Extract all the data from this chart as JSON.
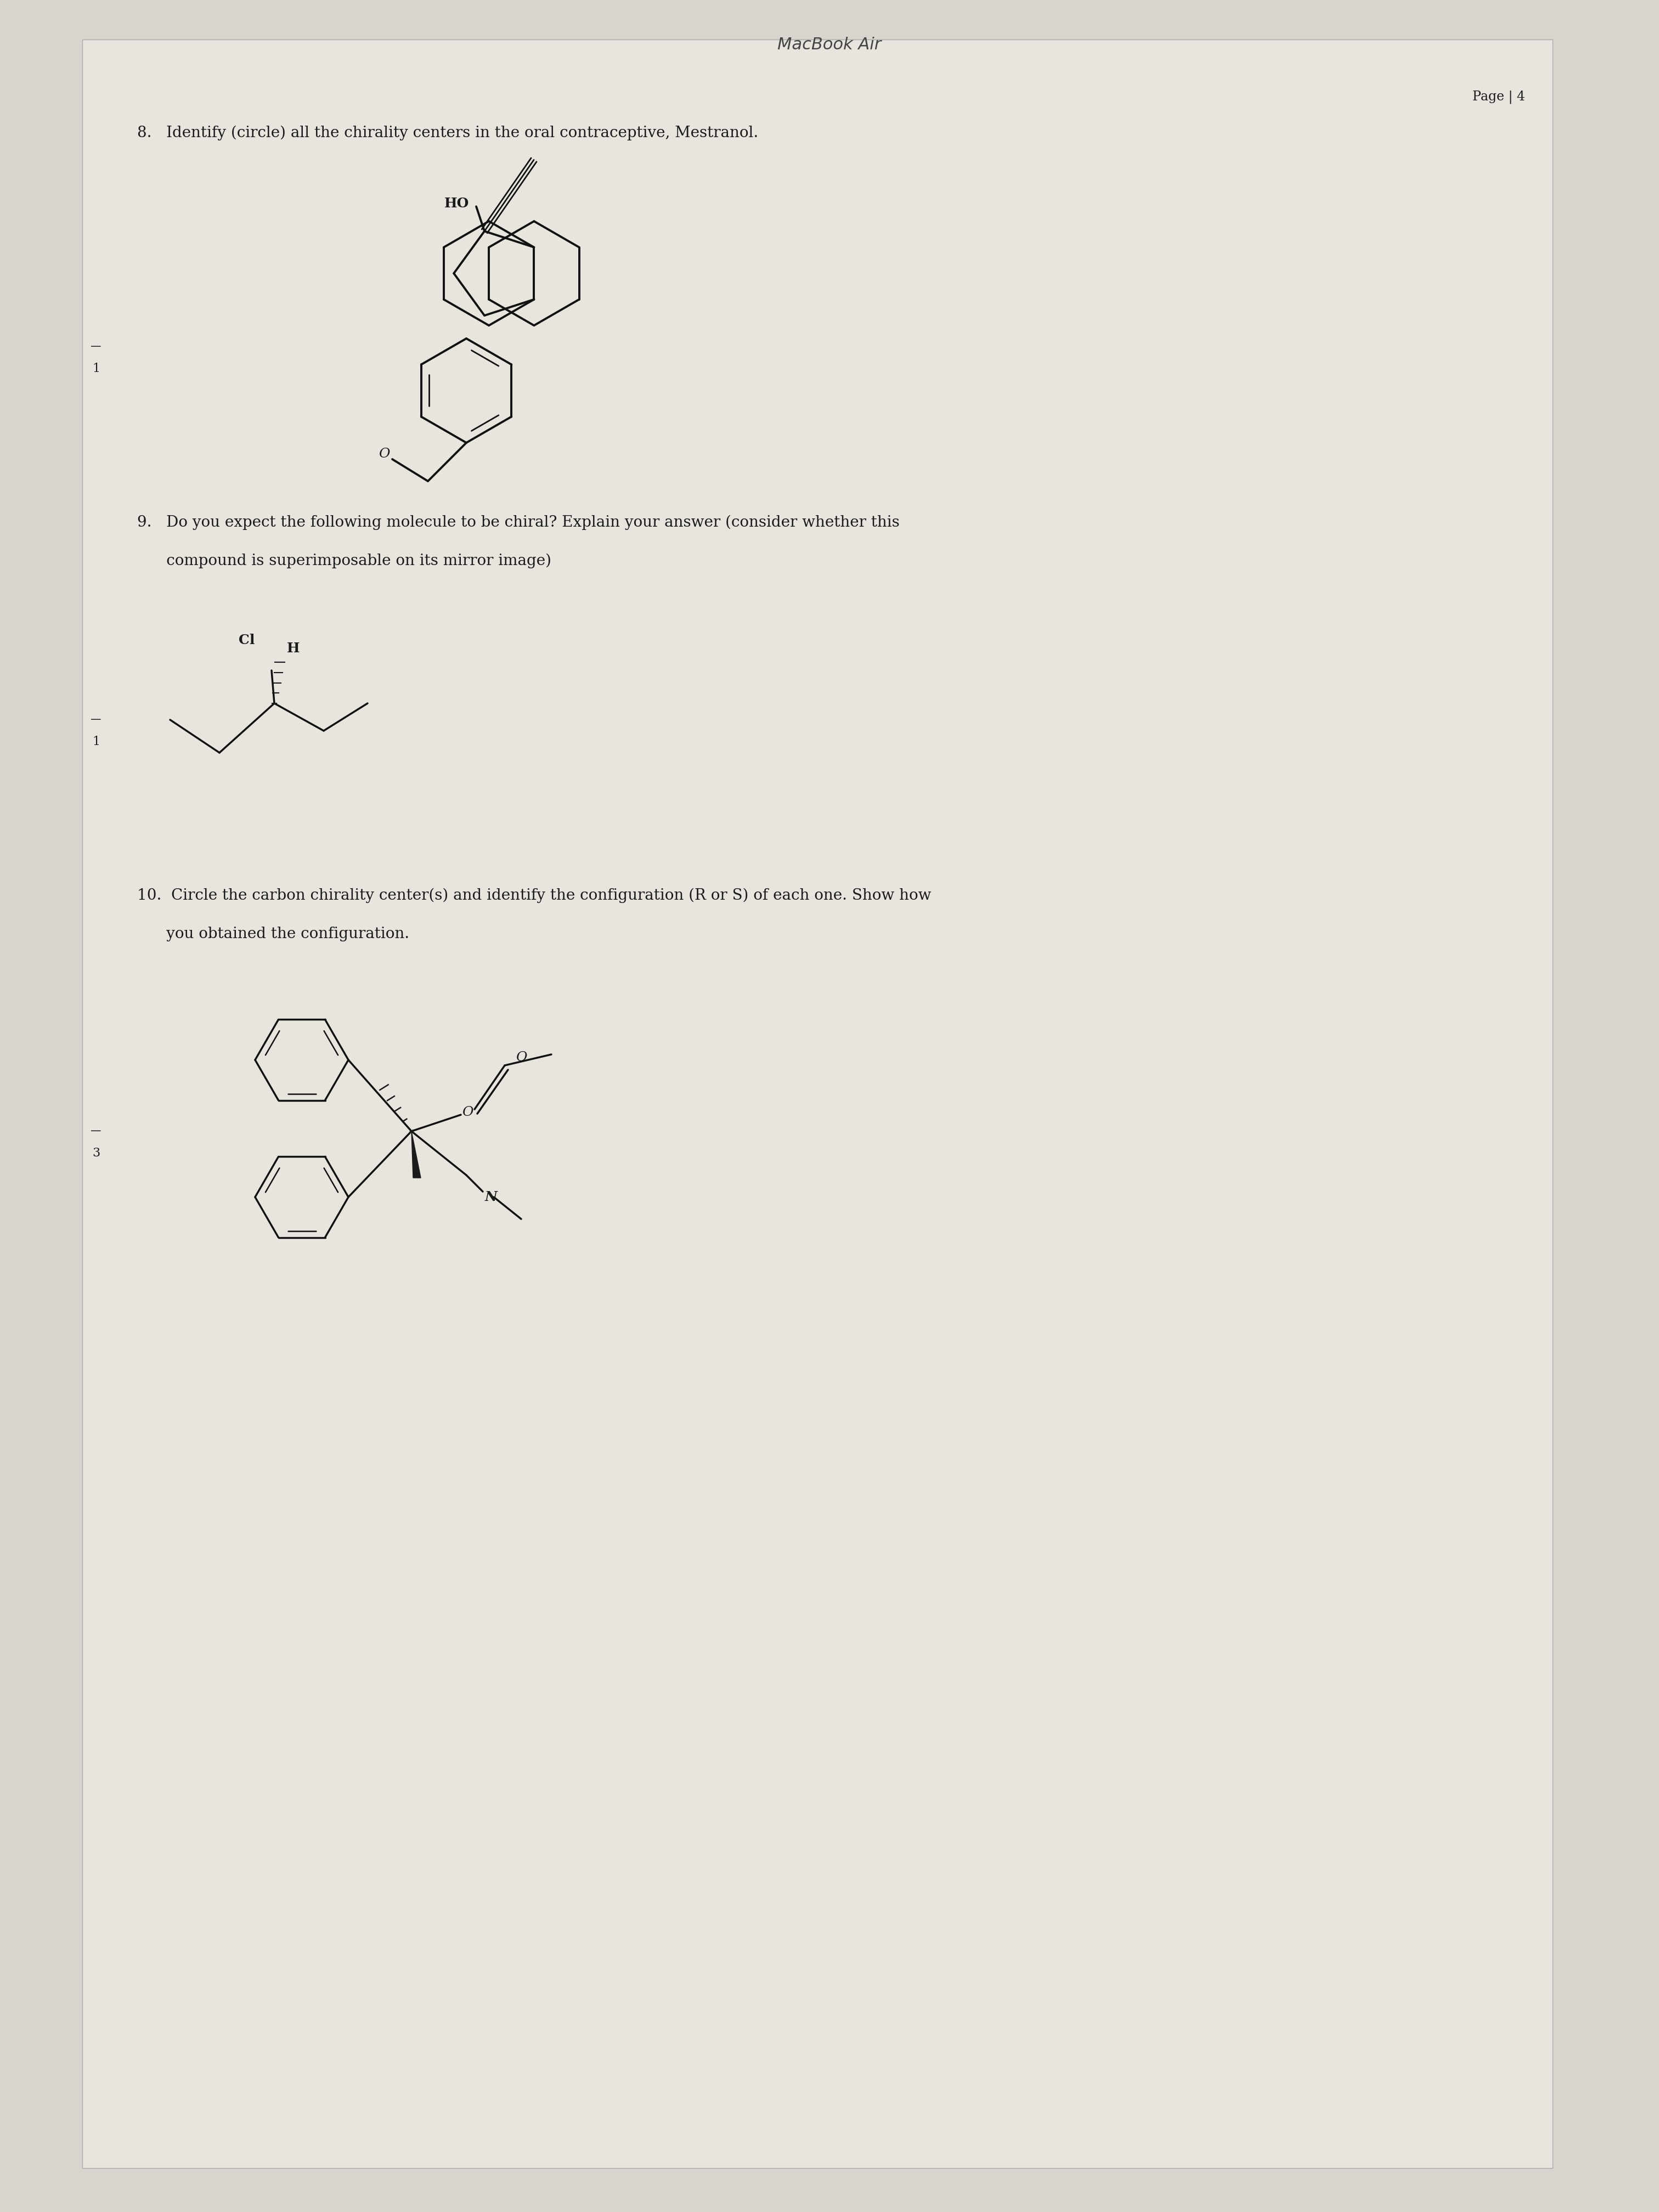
{
  "title": "MacBook Air",
  "page_label": "Page | 4",
  "background_color": "#d8d5cf",
  "paper_color": "#e8e5df",
  "text_color": "#1a1a1a",
  "question8": "8.   Identify (circle) all the chirality centers in the oral contraceptive, Mestranol.",
  "question9_line1": "9.   Do you expect the following molecule to be chiral? Explain your answer (consider whether this",
  "question9_line2": "      compound is superimposable on its mirror image)",
  "question10_line1": "10.  Circle the carbon chirality center(s) and identify the configuration (R or S) of each one. Show how",
  "question10_line2": "      you obtained the configuration.",
  "margin_label_1": "1",
  "margin_label_2": "1",
  "margin_label_3": "3"
}
